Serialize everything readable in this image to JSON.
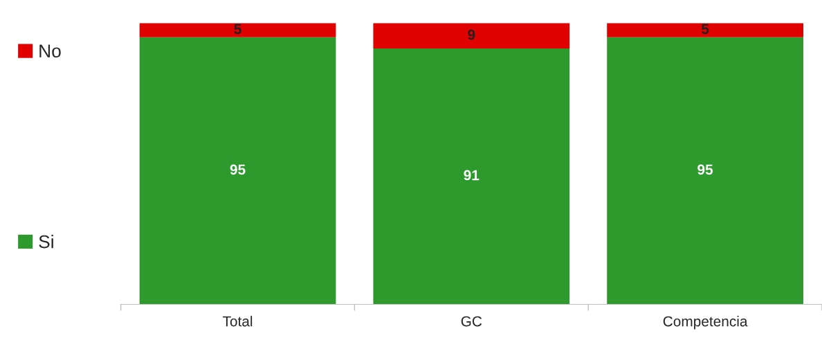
{
  "chart_data": {
    "type": "bar",
    "stacked": true,
    "categories": [
      "Total",
      "GC",
      "Competencia"
    ],
    "series": [
      {
        "name": "Si",
        "color": "#2e9a2e",
        "values": [
          95,
          91,
          95
        ]
      },
      {
        "name": "No",
        "color": "#e00000",
        "values": [
          5,
          9,
          5
        ]
      }
    ],
    "data_labels": true,
    "legend": "left",
    "grid": false,
    "tick_labels": "x"
  }
}
